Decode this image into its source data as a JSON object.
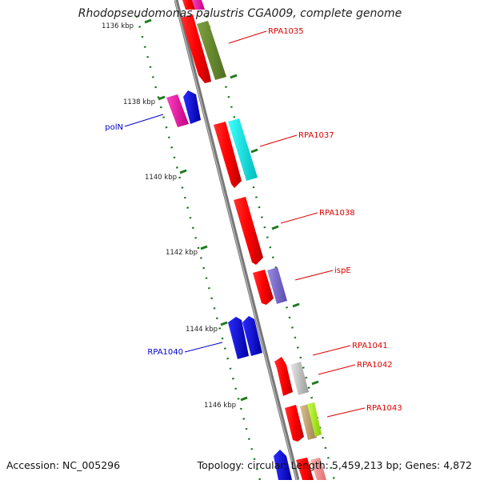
{
  "title": "Rhodopseudomonas palustris CGA009, complete genome",
  "footer": {
    "accession": "Accession: NC_005296",
    "summary": "Topology: circular; Length: 5,459,213 bp; Genes: 4,872"
  },
  "colors": {
    "backbone": "#888888",
    "tick": "#1e7a1e",
    "forward_label": "#0000cc",
    "reverse_label": "#dd0000"
  },
  "ticks": [
    "1136 kbp",
    "1138 kbp",
    "1140 kbp",
    "1142 kbp",
    "1144 kbp",
    "1146 kbp"
  ],
  "genes": {
    "poln": "polN",
    "rpa1035": "RPA1035",
    "rpa1037": "RPA1037",
    "rpa1038": "RPA1038",
    "ispe": "ispE",
    "rpa1040": "RPA1040",
    "rpa1041": "RPA1041",
    "rpa1042": "RPA1042",
    "rpa1043": "RPA1043"
  }
}
